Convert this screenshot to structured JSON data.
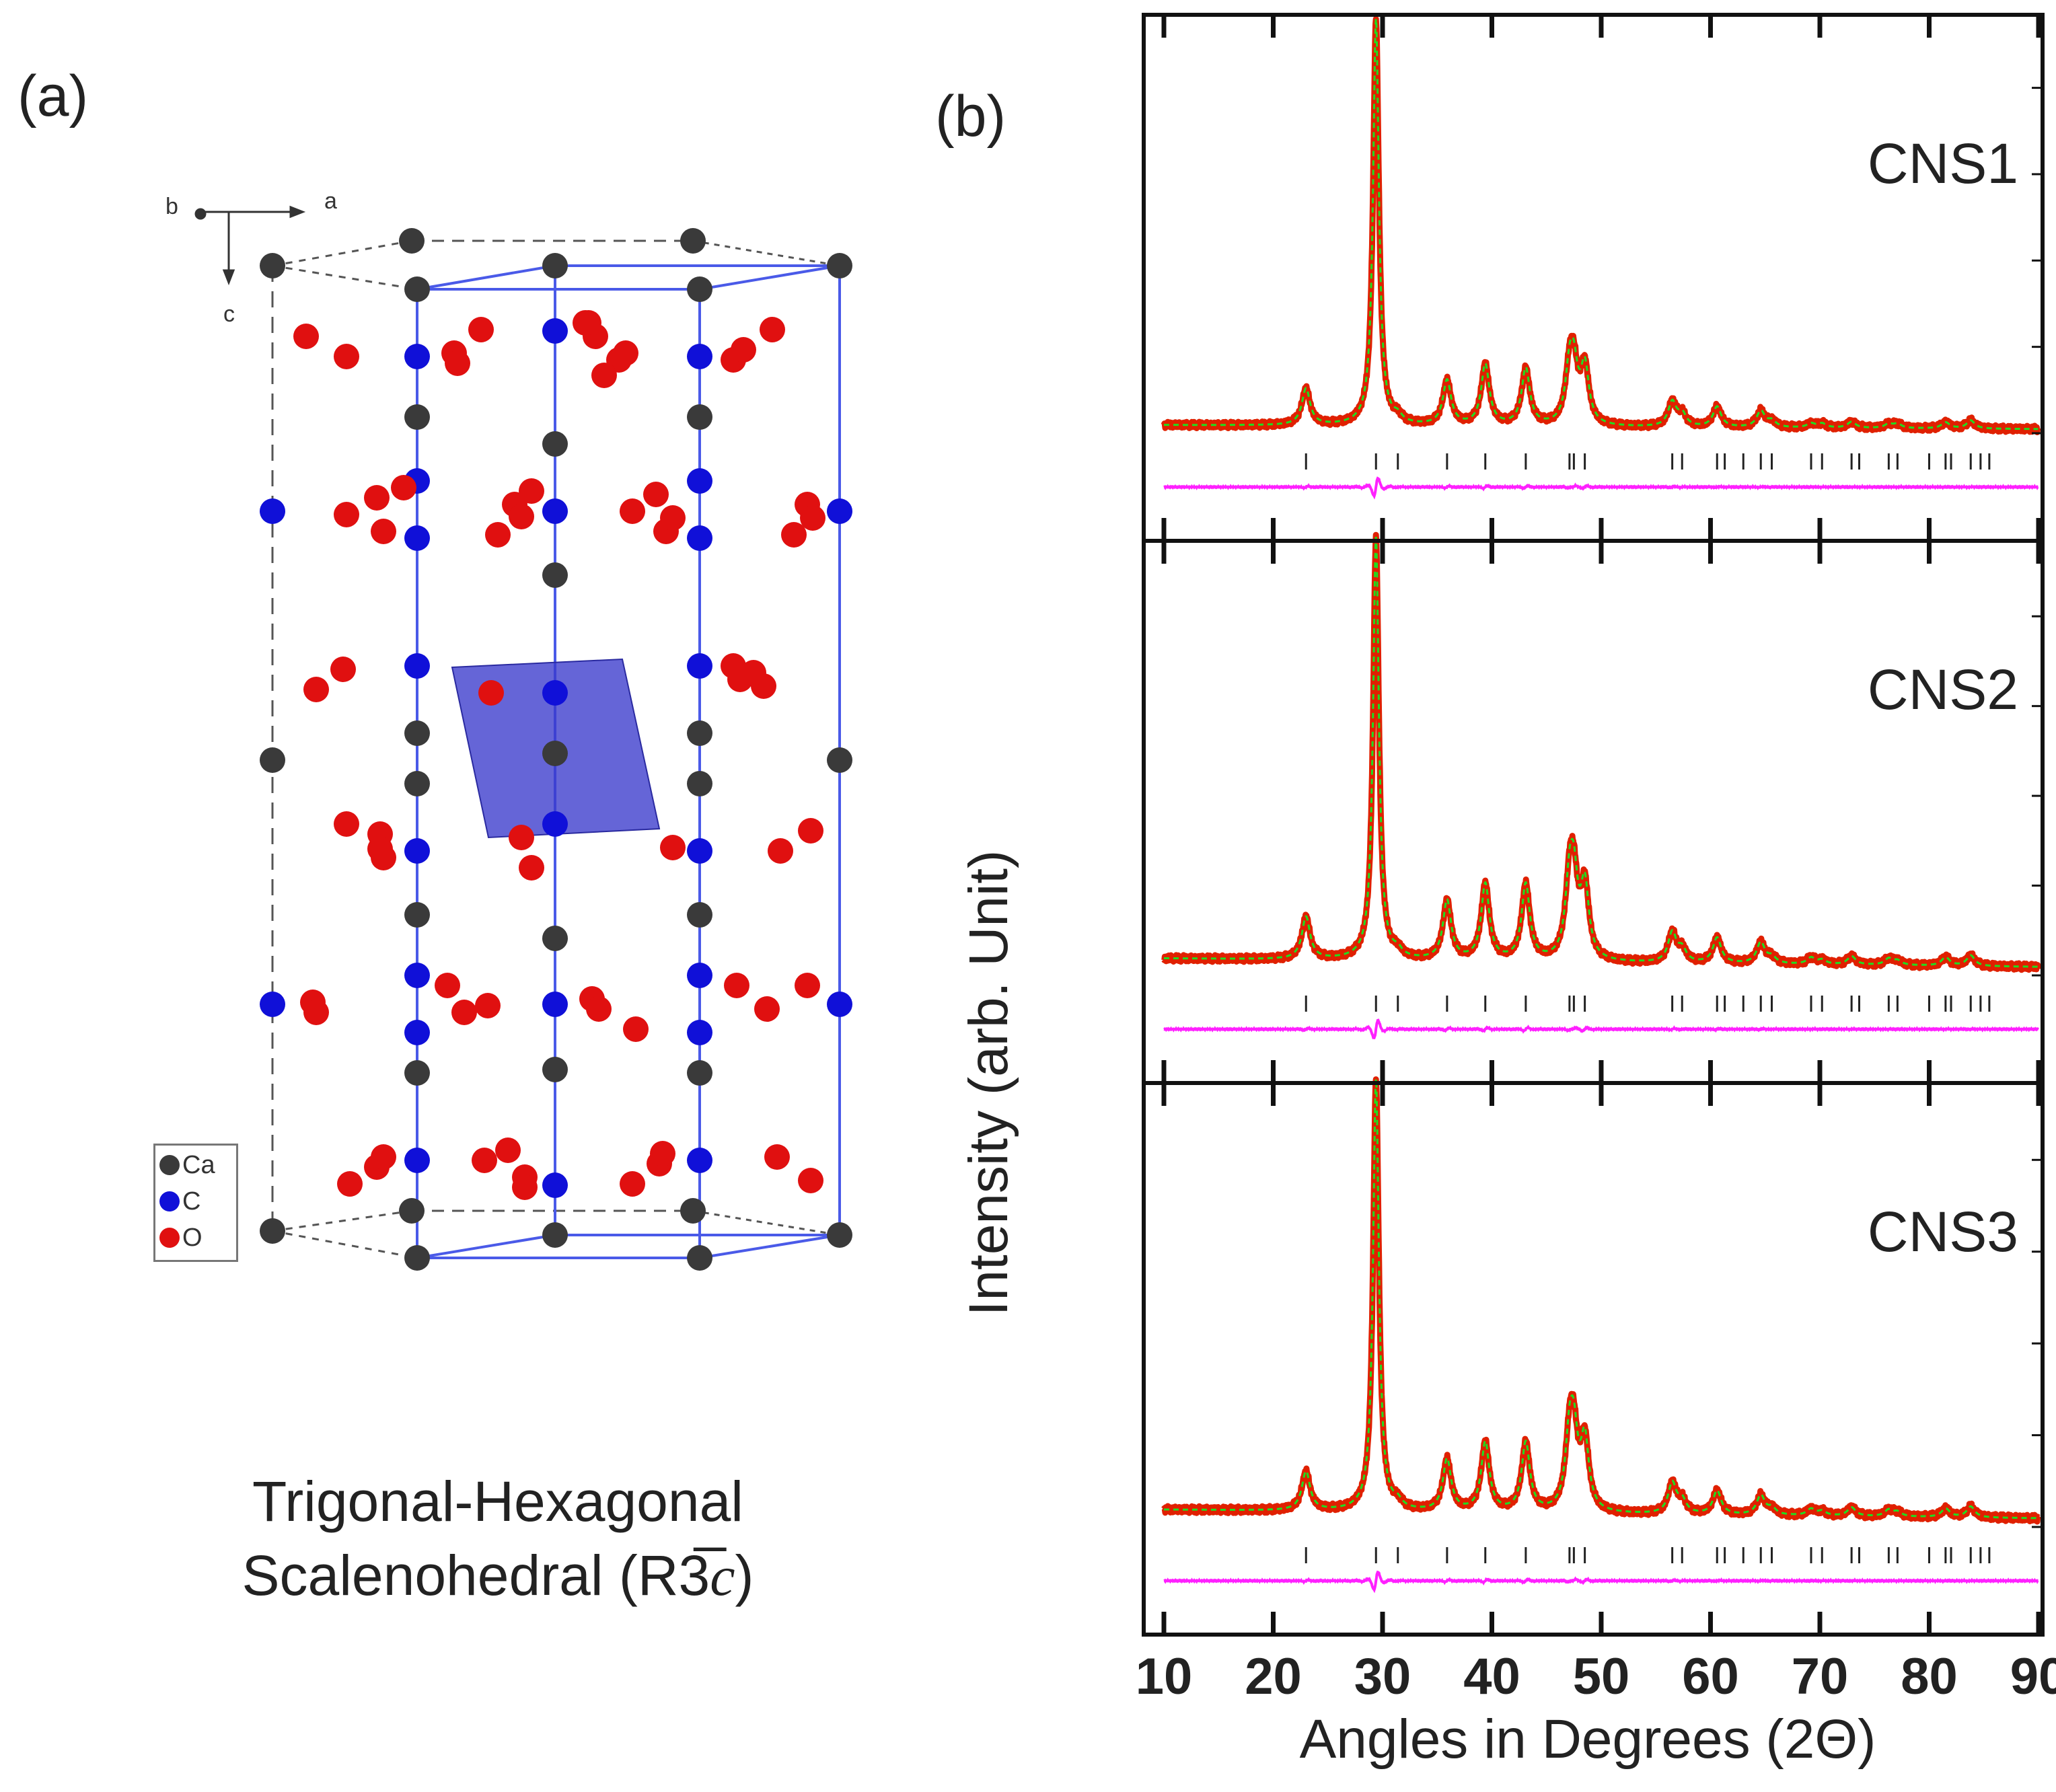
{
  "panel_a": {
    "label": "(a)",
    "axes": {
      "a": "a",
      "b": "b",
      "c": "c"
    },
    "legend": [
      {
        "symbol": "Ca",
        "color": "#3a3a3a"
      },
      {
        "symbol": "C",
        "color": "#1010d8"
      },
      {
        "symbol": "O",
        "color": "#e01010"
      }
    ],
    "caption_line1": "Trigonal-Hexagonal",
    "caption_line2_prefix": "Scalenohedral (R",
    "caption_space_group_bar": "3̅",
    "caption_space_group_italic": "c",
    "caption_line2_suffix": ")"
  },
  "colors": {
    "observed": "#e02000",
    "calculated": "#20dd20",
    "difference": "#ff20ff",
    "bragg": "#222222",
    "unit_cell": "#4a5ae8",
    "plane": "#3a3acc"
  },
  "chart_data": {
    "type": "line",
    "panel_label": "(b)",
    "xlabel": "Angles in Degrees (2Θ)",
    "ylabel": "Intensity (arb. Unit)",
    "xlim": [
      10,
      90
    ],
    "xticks": [
      10,
      20,
      30,
      40,
      50,
      60,
      70,
      80,
      90
    ],
    "tick_labels": [
      "10",
      "20",
      "30",
      "40",
      "50",
      "60",
      "70",
      "80",
      "90"
    ],
    "ylim": [
      0,
      1
    ],
    "bragg_positions": [
      23.0,
      29.4,
      31.4,
      35.9,
      39.4,
      43.1,
      47.1,
      47.5,
      48.5,
      56.5,
      57.4,
      60.6,
      61.3,
      63.0,
      64.6,
      65.6,
      69.2,
      70.2,
      72.9,
      73.6,
      76.3,
      77.1,
      80.0,
      81.5,
      82.0,
      83.8,
      84.7,
      85.5
    ],
    "series": [
      {
        "name": "CNS1",
        "background": 0.02,
        "peaks": [
          {
            "x": 23.0,
            "height": 0.09
          },
          {
            "x": 29.4,
            "height": 1.0
          },
          {
            "x": 31.4,
            "height": 0.015
          },
          {
            "x": 35.9,
            "height": 0.11
          },
          {
            "x": 39.4,
            "height": 0.15
          },
          {
            "x": 43.1,
            "height": 0.14
          },
          {
            "x": 47.1,
            "height": 0.12
          },
          {
            "x": 47.5,
            "height": 0.12
          },
          {
            "x": 48.5,
            "height": 0.14
          },
          {
            "x": 56.5,
            "height": 0.06
          },
          {
            "x": 57.4,
            "height": 0.03
          },
          {
            "x": 60.6,
            "height": 0.05
          },
          {
            "x": 64.6,
            "height": 0.04
          },
          {
            "x": 65.6,
            "height": 0.015
          },
          {
            "x": 69.2,
            "height": 0.01
          },
          {
            "x": 70.2,
            "height": 0.01
          },
          {
            "x": 72.9,
            "height": 0.015
          },
          {
            "x": 76.3,
            "height": 0.01
          },
          {
            "x": 77.1,
            "height": 0.01
          },
          {
            "x": 81.5,
            "height": 0.015
          },
          {
            "x": 83.8,
            "height": 0.02
          }
        ]
      },
      {
        "name": "CNS2",
        "background": 0.04,
        "peaks": [
          {
            "x": 23.0,
            "height": 0.1
          },
          {
            "x": 29.4,
            "height": 1.0
          },
          {
            "x": 31.4,
            "height": 0.015
          },
          {
            "x": 35.9,
            "height": 0.14
          },
          {
            "x": 39.4,
            "height": 0.18
          },
          {
            "x": 43.1,
            "height": 0.18
          },
          {
            "x": 47.1,
            "height": 0.16
          },
          {
            "x": 47.5,
            "height": 0.16
          },
          {
            "x": 48.5,
            "height": 0.17
          },
          {
            "x": 56.5,
            "height": 0.07
          },
          {
            "x": 57.4,
            "height": 0.03
          },
          {
            "x": 60.6,
            "height": 0.06
          },
          {
            "x": 64.6,
            "height": 0.05
          },
          {
            "x": 65.6,
            "height": 0.015
          },
          {
            "x": 69.2,
            "height": 0.015
          },
          {
            "x": 70.2,
            "height": 0.01
          },
          {
            "x": 72.9,
            "height": 0.02
          },
          {
            "x": 76.3,
            "height": 0.015
          },
          {
            "x": 77.1,
            "height": 0.01
          },
          {
            "x": 81.5,
            "height": 0.02
          },
          {
            "x": 83.8,
            "height": 0.025
          }
        ]
      },
      {
        "name": "CNS3",
        "background": 0.04,
        "peaks": [
          {
            "x": 23.0,
            "height": 0.09
          },
          {
            "x": 29.4,
            "height": 1.0
          },
          {
            "x": 31.4,
            "height": 0.015
          },
          {
            "x": 35.9,
            "height": 0.12
          },
          {
            "x": 39.4,
            "height": 0.16
          },
          {
            "x": 43.1,
            "height": 0.16
          },
          {
            "x": 47.1,
            "height": 0.15
          },
          {
            "x": 47.5,
            "height": 0.15
          },
          {
            "x": 48.5,
            "height": 0.16
          },
          {
            "x": 56.5,
            "height": 0.07
          },
          {
            "x": 57.4,
            "height": 0.03
          },
          {
            "x": 60.6,
            "height": 0.055
          },
          {
            "x": 64.6,
            "height": 0.045
          },
          {
            "x": 65.6,
            "height": 0.015
          },
          {
            "x": 69.2,
            "height": 0.015
          },
          {
            "x": 70.2,
            "height": 0.01
          },
          {
            "x": 72.9,
            "height": 0.02
          },
          {
            "x": 76.3,
            "height": 0.015
          },
          {
            "x": 77.1,
            "height": 0.01
          },
          {
            "x": 81.5,
            "height": 0.02
          },
          {
            "x": 83.8,
            "height": 0.025
          }
        ]
      }
    ]
  }
}
